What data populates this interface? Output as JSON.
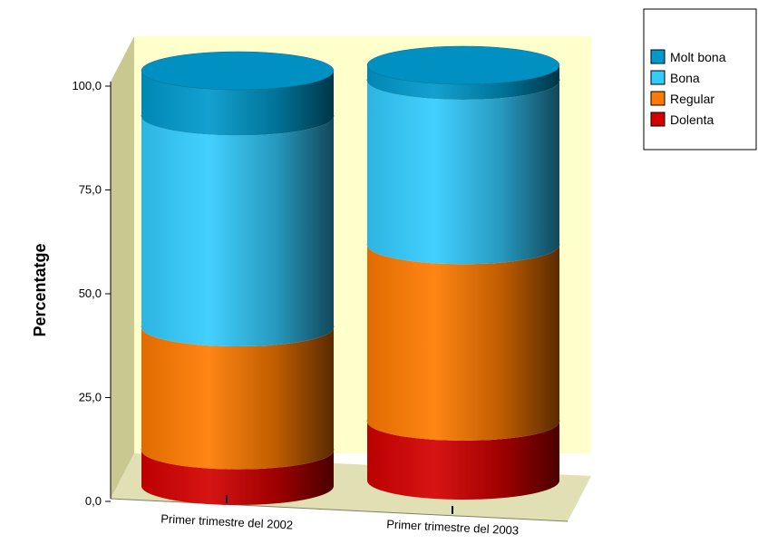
{
  "chart_data": {
    "type": "bar",
    "subtype": "stacked-100-percent-3d-cylinder",
    "categories": [
      "Primer trimestre del 2002",
      "Primer trimestre del 2003"
    ],
    "series": [
      {
        "name": "Dolenta",
        "values": [
          8.6,
          14.2
        ],
        "color": "#d40000"
      },
      {
        "name": "Regular",
        "values": [
          29.6,
          42.5
        ],
        "color": "#ff7a00"
      },
      {
        "name": "Bona",
        "values": [
          50.8,
          39.6
        ],
        "color": "#33ccff"
      },
      {
        "name": "Molt bona",
        "values": [
          11.0,
          3.7
        ],
        "color": "#0099cc"
      }
    ],
    "ylabel": "Percentatge",
    "ylim": [
      0,
      100
    ],
    "yticks": [
      "0,0",
      "25,0",
      "50,0",
      "75,0",
      "100,0"
    ],
    "legend_position": "top-right",
    "legend_order": [
      "Molt bona",
      "Bona",
      "Regular",
      "Dolenta"
    ],
    "wall_color": "#ffffcc",
    "side_wall_color": "#c8c890",
    "floor_color": "#e0e0b4"
  }
}
